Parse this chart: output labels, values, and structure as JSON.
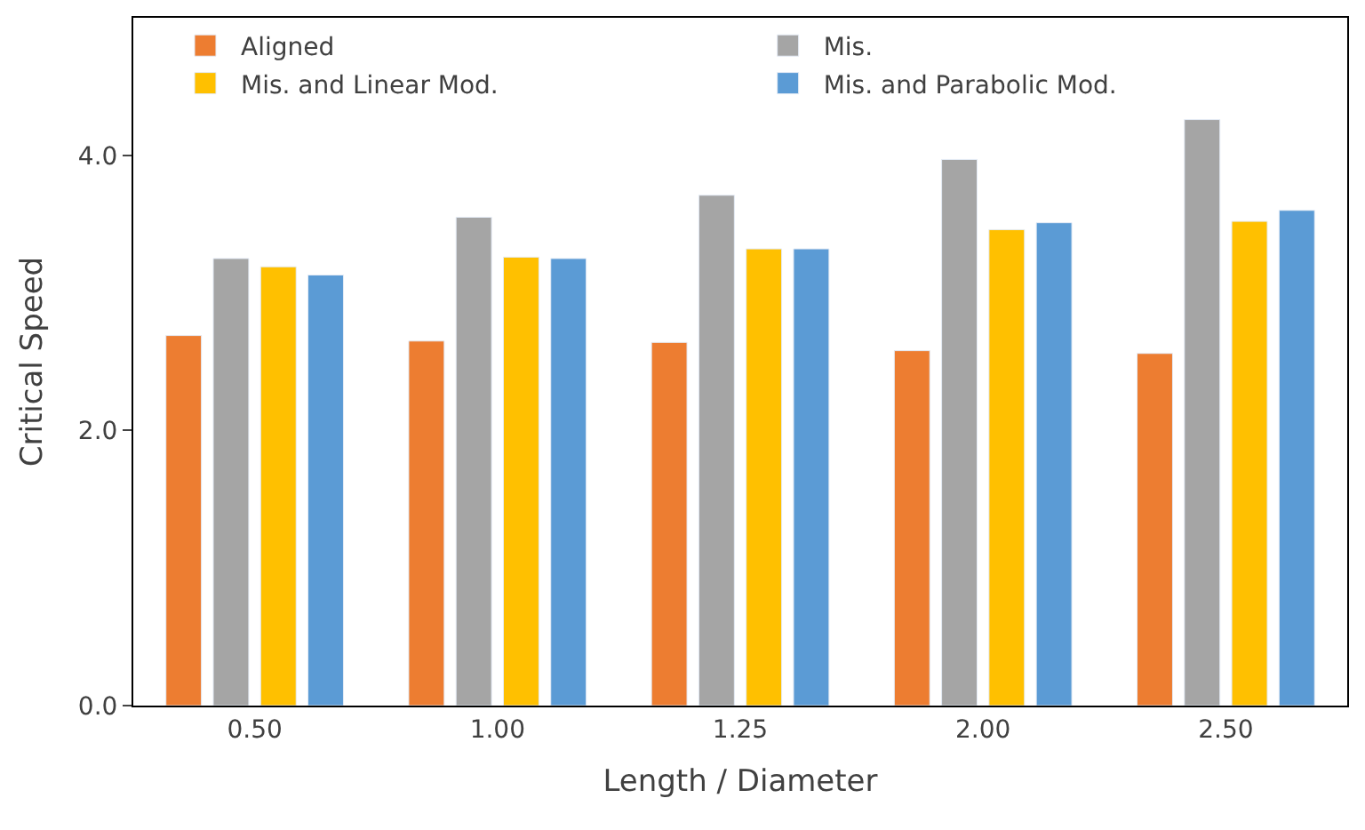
{
  "chart_data": {
    "type": "bar",
    "xlabel": "Length / Diameter",
    "ylabel": "Critical Speed",
    "categories": [
      "0.50",
      "1.00",
      "1.25",
      "2.00",
      "2.50"
    ],
    "series": [
      {
        "name": "Aligned",
        "color": "#ed7d31",
        "values": [
          2.69,
          2.65,
          2.64,
          2.58,
          2.56
        ]
      },
      {
        "name": "Mis.",
        "color": "#a5a5a5",
        "values": [
          3.25,
          3.55,
          3.71,
          3.97,
          4.26
        ]
      },
      {
        "name": "Mis. and Linear Mod.",
        "color": "#ffc000",
        "values": [
          3.19,
          3.26,
          3.32,
          3.46,
          3.52
        ]
      },
      {
        "name": "Mis. and Parabolic Mod.",
        "color": "#5b9bd5",
        "values": [
          3.13,
          3.25,
          3.32,
          3.51,
          3.6
        ]
      }
    ],
    "ylim": [
      0,
      5
    ],
    "yticks": [
      {
        "value": 0,
        "label": "0.0"
      },
      {
        "value": 2,
        "label": "2.0"
      },
      {
        "value": 4,
        "label": "4.0"
      }
    ],
    "legend": "top"
  }
}
